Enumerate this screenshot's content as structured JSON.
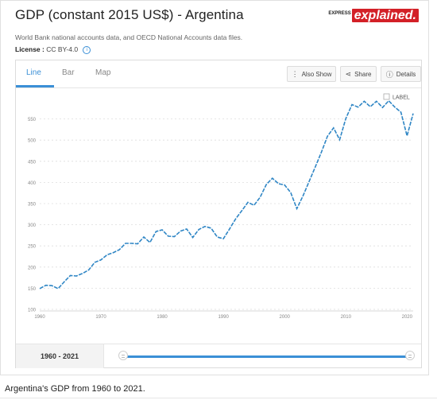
{
  "header": {
    "title": "GDP (constant 2015 US$) - Argentina",
    "brand_small": "EXPRESS",
    "brand_big": "explained.",
    "source": "World Bank national accounts data, and OECD National Accounts data files.",
    "license_label": "License :",
    "license_value": "CC BY-4.0",
    "info_icon": "info-icon"
  },
  "tabs": [
    {
      "label": "Line",
      "active": true
    },
    {
      "label": "Bar",
      "active": false
    },
    {
      "label": "Map",
      "active": false
    }
  ],
  "actions": {
    "also_show": "Also Show",
    "share": "Share",
    "details": "Details"
  },
  "colors": {
    "accent": "#3a8fd6",
    "line": "#2f86c5",
    "grid": "#dddddd"
  },
  "range": {
    "label": "1960 - 2021",
    "start": 1960,
    "end": 2021
  },
  "caption": "Argentina's GDP from 1960 to 2021.",
  "chart_data": {
    "type": "line",
    "legend_checkbox_label": "LABEL",
    "ylim": [
      100,
      600
    ],
    "yticks": [
      100,
      150,
      200,
      250,
      300,
      350,
      400,
      450,
      500,
      550
    ],
    "xticks": [
      1960,
      1970,
      1980,
      1990,
      2000,
      2010,
      2020
    ],
    "grid": true,
    "series": [
      {
        "x": [
          1960,
          1961,
          1962,
          1963,
          1964,
          1965,
          1966,
          1967,
          1968,
          1969,
          1970,
          1971,
          1972,
          1973,
          1974,
          1975,
          1976,
          1977,
          1978,
          1979,
          1980,
          1981,
          1982,
          1983,
          1984,
          1985,
          1986,
          1987,
          1988,
          1989,
          1990,
          1991,
          1992,
          1993,
          1994,
          1995,
          1996,
          1997,
          1998,
          1999,
          2000,
          2001,
          2002,
          2003,
          2004,
          2005,
          2006,
          2007,
          2008,
          2009,
          2010,
          2011,
          2012,
          2013,
          2014,
          2015,
          2016,
          2017,
          2018,
          2019,
          2020,
          2021
        ],
        "values": [
          149,
          157,
          156,
          149,
          165,
          180,
          179,
          185,
          193,
          211,
          217,
          229,
          234,
          241,
          256,
          256,
          255,
          271,
          258,
          284,
          288,
          273,
          272,
          285,
          290,
          270,
          289,
          296,
          292,
          271,
          267,
          290,
          314,
          333,
          353,
          346,
          365,
          395,
          410,
          397,
          394,
          376,
          338,
          368,
          402,
          436,
          471,
          509,
          529,
          501,
          551,
          584,
          578,
          592,
          579,
          592,
          577,
          593,
          578,
          566,
          510,
          563
        ]
      }
    ]
  }
}
